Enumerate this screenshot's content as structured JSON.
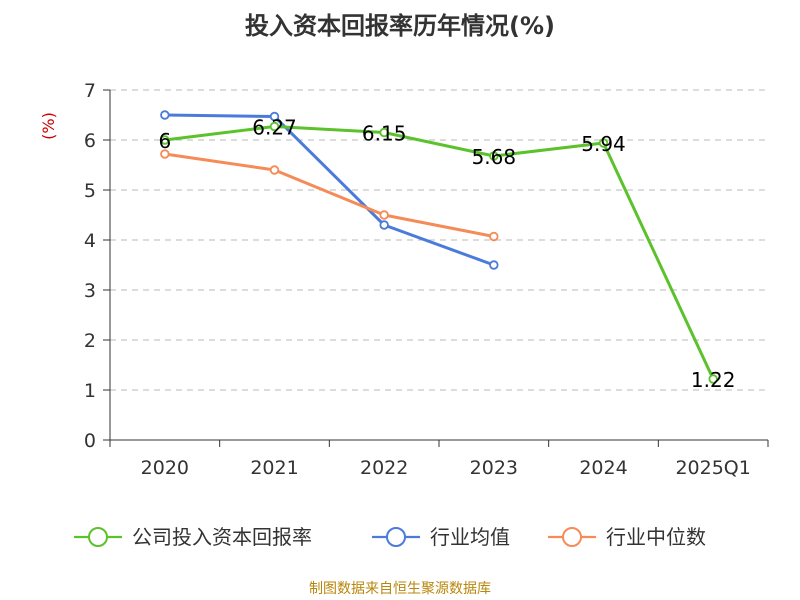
{
  "chart_data": {
    "type": "line",
    "title": "投入资本回报率历年情况(%)",
    "ylabel": "(%)",
    "xlabel": "",
    "categories": [
      "2020",
      "2021",
      "2022",
      "2023",
      "2024",
      "2025Q1"
    ],
    "ylim": [
      0,
      7
    ],
    "yticks": [
      0,
      1,
      2,
      3,
      4,
      5,
      6,
      7
    ],
    "grid": true,
    "legend_position": "bottom",
    "series": [
      {
        "name": "公司投入资本回报率",
        "color": "#5cc22b",
        "values": [
          6,
          6.27,
          6.15,
          5.68,
          5.94,
          1.22
        ],
        "labels": [
          "6",
          "6.27",
          "6.15",
          "5.68",
          "5.94",
          "1.22"
        ],
        "show_labels": true
      },
      {
        "name": "行业均值",
        "color": "#4a7bdb",
        "values": [
          6.5,
          6.47,
          4.3,
          3.5,
          null,
          null
        ],
        "show_labels": false
      },
      {
        "name": "行业中位数",
        "color": "#f58b57",
        "values": [
          5.72,
          5.4,
          4.5,
          4.07,
          null,
          null
        ],
        "show_labels": false
      }
    ],
    "source": "制图数据来自恒生聚源数据库"
  }
}
